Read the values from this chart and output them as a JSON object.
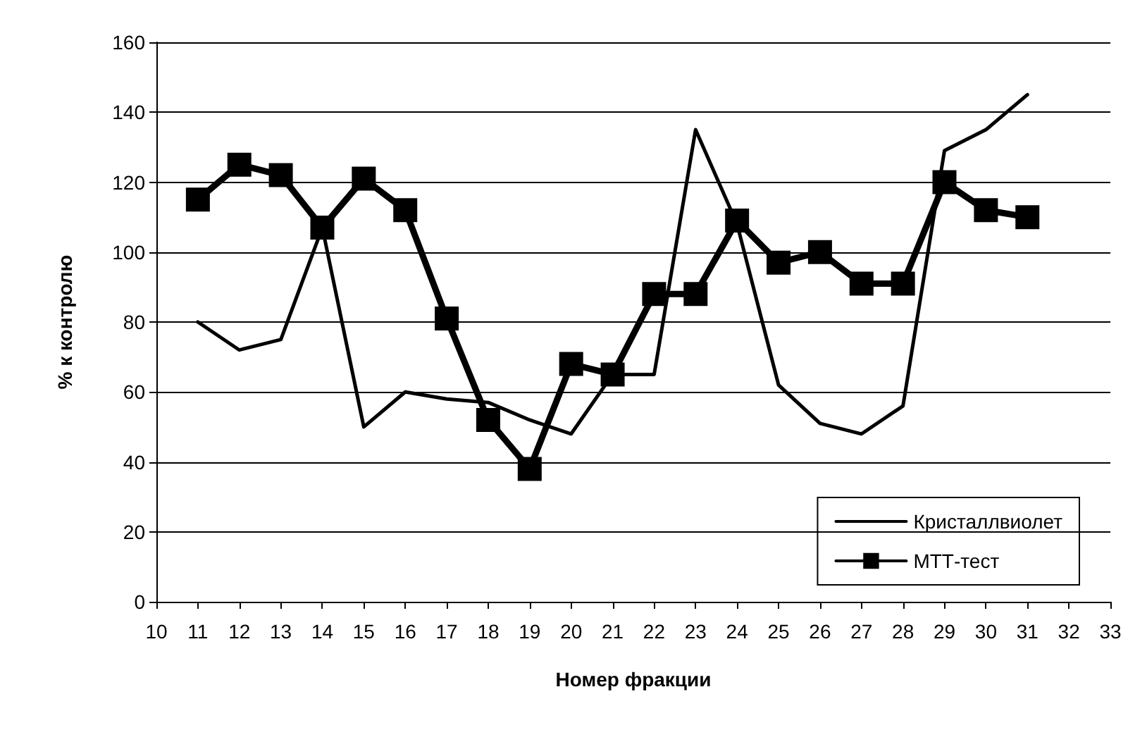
{
  "chart_data": {
    "type": "line",
    "xlabel": "Номер фракции",
    "ylabel": "% к контролю",
    "xlim": [
      10,
      33
    ],
    "xticks": [
      10,
      11,
      12,
      13,
      14,
      15,
      16,
      17,
      18,
      19,
      20,
      21,
      22,
      23,
      24,
      25,
      26,
      27,
      28,
      29,
      30,
      31,
      32,
      33
    ],
    "ylim": [
      0,
      160
    ],
    "yticks": [
      0,
      20,
      40,
      60,
      80,
      100,
      120,
      140,
      160
    ],
    "grid": "y",
    "legend": "bottom right",
    "line_style": "solid",
    "x": [
      11,
      12,
      13,
      14,
      15,
      16,
      17,
      18,
      19,
      20,
      21,
      22,
      23,
      24,
      25,
      26,
      27,
      28,
      29,
      30,
      31
    ],
    "series": [
      {
        "name": "Кристаллвиолет",
        "color": "#000000",
        "marker": "none",
        "values": [
          80,
          72,
          75,
          107,
          50,
          60,
          58,
          57,
          52,
          48,
          65,
          65,
          135,
          108,
          62,
          51,
          48,
          56,
          129,
          135,
          145
        ]
      },
      {
        "name": "МТТ-тест",
        "color": "#000000",
        "marker": "square",
        "values": [
          115,
          125,
          122,
          107,
          121,
          112,
          81,
          52,
          38,
          68,
          65,
          88,
          88,
          109,
          97,
          100,
          91,
          91,
          120,
          112,
          110
        ]
      }
    ]
  }
}
